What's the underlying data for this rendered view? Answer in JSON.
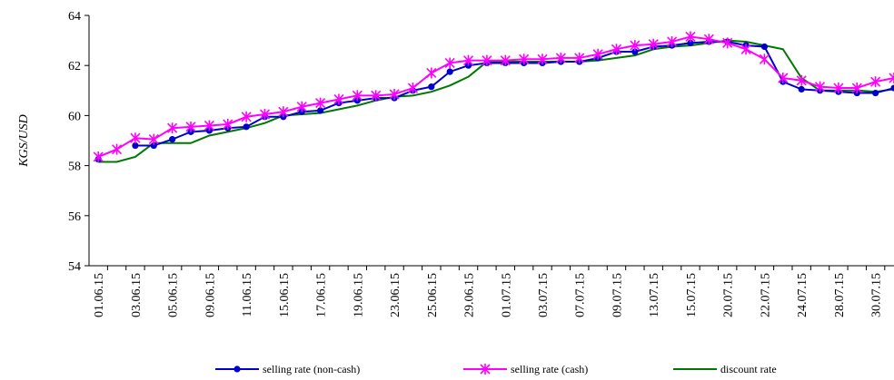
{
  "chart_data": {
    "type": "line",
    "title": "",
    "xlabel": "",
    "ylabel": "KGS/USD",
    "ylim": [
      54,
      64
    ],
    "yticks": [
      54,
      56,
      58,
      60,
      62,
      64
    ],
    "grid": false,
    "legend_position": "bottom",
    "x": [
      "01.06.15",
      "02.06.15",
      "03.06.15",
      "04.06.15",
      "05.06.15",
      "08.06.15",
      "09.06.15",
      "10.06.15",
      "11.06.15",
      "12.06.15",
      "15.06.15",
      "16.06.15",
      "17.06.15",
      "18.06.15",
      "19.06.15",
      "22.06.15",
      "23.06.15",
      "24.06.15",
      "25.06.15",
      "26.06.15",
      "29.06.15",
      "30.06.15",
      "01.07.15",
      "02.07.15",
      "03.07.15",
      "06.07.15",
      "07.07.15",
      "08.07.15",
      "09.07.15",
      "10.07.15",
      "13.07.15",
      "14.07.15",
      "15.07.15",
      "16.07.15",
      "20.07.15",
      "21.07.15",
      "22.07.15",
      "23.07.15",
      "24.07.15",
      "27.07.15",
      "28.07.15",
      "29.07.15",
      "30.07.15",
      "31.07.15"
    ],
    "x_tick_labels": [
      "01.06.15",
      "03.06.15",
      "05.06.15",
      "09.06.15",
      "11.06.15",
      "15.06.15",
      "17.06.15",
      "19.06.15",
      "23.06.15",
      "25.06.15",
      "29.06.15",
      "01.07.15",
      "03.07.15",
      "07.07.15",
      "09.07.15",
      "13.07.15",
      "15.07.15",
      "20.07.15",
      "22.07.15",
      "24.07.15",
      "28.07.15",
      "30.07.15"
    ],
    "series": [
      {
        "name": "selling rate (non-cash)",
        "color": "#0000cc",
        "marker": "circle",
        "values": [
          58.25,
          null,
          58.8,
          58.8,
          59.05,
          59.35,
          59.4,
          59.5,
          59.55,
          59.95,
          59.95,
          60.15,
          60.2,
          60.5,
          60.6,
          60.7,
          60.7,
          61.0,
          61.15,
          61.75,
          62.0,
          62.1,
          62.1,
          62.1,
          62.1,
          62.15,
          62.15,
          62.3,
          62.55,
          62.55,
          62.75,
          62.8,
          62.9,
          62.95,
          62.95,
          62.8,
          62.75,
          61.35,
          61.05,
          61.0,
          60.95,
          60.9,
          60.9,
          61.1
        ]
      },
      {
        "name": "selling rate (cash)",
        "color": "#ff00ff",
        "marker": "x",
        "values": [
          58.35,
          58.65,
          59.1,
          59.05,
          59.5,
          59.55,
          59.6,
          59.65,
          59.95,
          60.05,
          60.15,
          60.35,
          60.5,
          60.65,
          60.8,
          60.8,
          60.85,
          61.1,
          61.7,
          62.1,
          62.2,
          62.2,
          62.2,
          62.25,
          62.25,
          62.3,
          62.3,
          62.45,
          62.65,
          62.8,
          62.85,
          62.95,
          63.15,
          63.05,
          62.9,
          62.65,
          62.25,
          61.5,
          61.4,
          61.15,
          61.1,
          61.1,
          61.35,
          61.5
        ]
      },
      {
        "name": "discount rate",
        "color": "#007700",
        "marker": "none",
        "values": [
          58.15,
          58.15,
          58.35,
          58.9,
          58.9,
          58.9,
          59.2,
          59.35,
          59.5,
          59.7,
          60.0,
          60.05,
          60.1,
          60.25,
          60.4,
          60.6,
          60.75,
          60.8,
          60.95,
          61.2,
          61.55,
          62.15,
          62.15,
          62.15,
          62.15,
          62.15,
          62.15,
          62.2,
          62.3,
          62.4,
          62.65,
          62.75,
          62.8,
          62.9,
          63.0,
          62.95,
          62.8,
          62.65,
          61.5,
          61.0,
          61.0,
          61.0,
          60.95,
          61.05
        ]
      }
    ]
  }
}
